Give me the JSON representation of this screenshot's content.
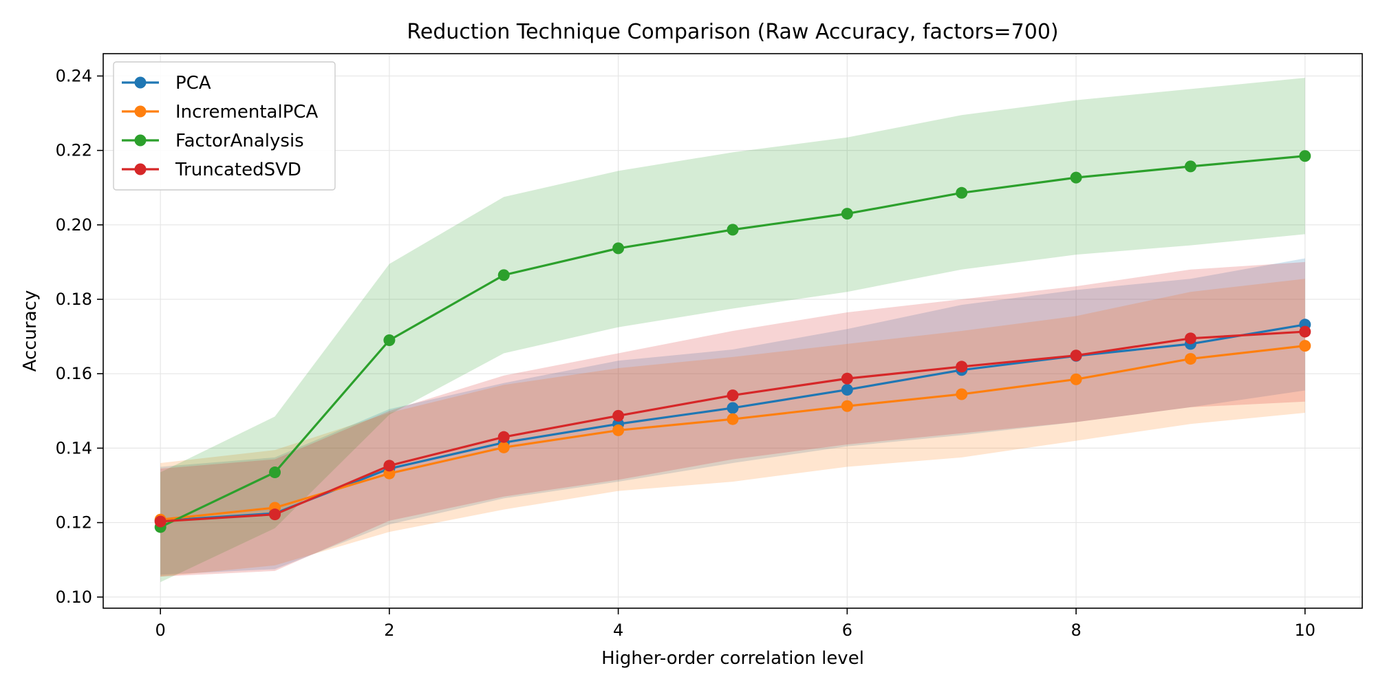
{
  "chart_data": {
    "type": "line",
    "title": "Reduction Technique Comparison (Raw Accuracy, factors=700)",
    "xlabel": "Higher-order correlation level",
    "ylabel": "Accuracy",
    "x": [
      0,
      1,
      2,
      3,
      4,
      5,
      6,
      7,
      8,
      9,
      10
    ],
    "xlim": [
      -0.5,
      10.5
    ],
    "ylim": [
      0.097,
      0.246
    ],
    "xticks": [
      0,
      2,
      4,
      6,
      8,
      10
    ],
    "yticks": [
      0.1,
      0.12,
      0.14,
      0.16,
      0.18,
      0.2,
      0.22,
      0.24
    ],
    "ytick_labels": [
      "0.10",
      "0.12",
      "0.14",
      "0.16",
      "0.18",
      "0.20",
      "0.22",
      "0.24"
    ],
    "grid": true,
    "legend_position": "upper-left",
    "series": [
      {
        "name": "PCA",
        "color": "#1f77b4",
        "values": [
          0.1205,
          0.1225,
          0.1345,
          0.1415,
          0.1465,
          0.1508,
          0.1557,
          0.161,
          0.1648,
          0.168,
          0.1732
        ],
        "lower": [
          0.106,
          0.1075,
          0.1195,
          0.1265,
          0.131,
          0.136,
          0.1405,
          0.1435,
          0.147,
          0.151,
          0.1555
        ],
        "upper": [
          0.135,
          0.1375,
          0.1505,
          0.1575,
          0.1635,
          0.1665,
          0.172,
          0.1785,
          0.1825,
          0.1855,
          0.191
        ]
      },
      {
        "name": "IncrementalPCA",
        "color": "#ff7f0e",
        "values": [
          0.1208,
          0.124,
          0.1332,
          0.1402,
          0.1448,
          0.1478,
          0.1513,
          0.1545,
          0.1585,
          0.164,
          0.1675
        ],
        "lower": [
          0.1055,
          0.1085,
          0.1175,
          0.1235,
          0.1285,
          0.131,
          0.135,
          0.1375,
          0.142,
          0.1465,
          0.1495
        ],
        "upper": [
          0.136,
          0.1395,
          0.1495,
          0.157,
          0.1615,
          0.1645,
          0.168,
          0.1715,
          0.1755,
          0.182,
          0.1855
        ]
      },
      {
        "name": "FactorAnalysis",
        "color": "#2ca02c",
        "values": [
          0.1188,
          0.1335,
          0.169,
          0.1865,
          0.1937,
          0.1987,
          0.203,
          0.2086,
          0.2127,
          0.2157,
          0.2185
        ],
        "lower": [
          0.104,
          0.1185,
          0.149,
          0.1655,
          0.1725,
          0.1775,
          0.182,
          0.188,
          0.192,
          0.1945,
          0.1975
        ],
        "upper": [
          0.1335,
          0.1485,
          0.1895,
          0.2075,
          0.2145,
          0.2195,
          0.2235,
          0.2295,
          0.2335,
          0.2365,
          0.2395
        ]
      },
      {
        "name": "TruncatedSVD",
        "color": "#d62728",
        "values": [
          0.1203,
          0.1222,
          0.1353,
          0.143,
          0.1487,
          0.1542,
          0.1587,
          0.1619,
          0.1649,
          0.1695,
          0.1713
        ],
        "lower": [
          0.1055,
          0.107,
          0.1205,
          0.127,
          0.1315,
          0.137,
          0.141,
          0.144,
          0.147,
          0.151,
          0.1525
        ],
        "upper": [
          0.1345,
          0.137,
          0.15,
          0.1595,
          0.1655,
          0.1715,
          0.1765,
          0.18,
          0.1835,
          0.188,
          0.19
        ]
      }
    ]
  }
}
